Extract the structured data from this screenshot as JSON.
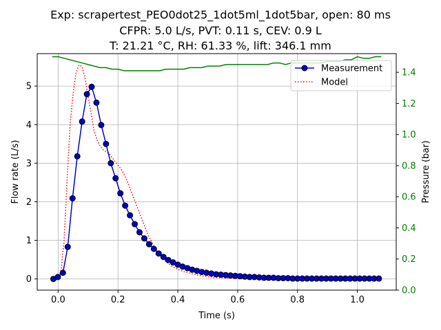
{
  "title": {
    "line1": "Exp: scrapertest_PEO0dot25_1dot5ml_1dot5bar, open: 80 ms",
    "line2": "CFPR: 5.0 L/s, PVT: 0.11 s, CEV: 0.9 L",
    "line3": "T: 21.21 °C, RH: 61.33 %, lift: 346.1 mm"
  },
  "chart_data": {
    "type": "line",
    "xlabel": "Time (s)",
    "ylabel": "Flow rate (L/s)",
    "y2label": "Pressure (bar)",
    "xlim": [
      -0.07,
      1.13
    ],
    "ylim": [
      -0.29,
      5.84
    ],
    "y2lim": [
      0.0,
      1.52
    ],
    "xticks": [
      "0.0",
      "0.2",
      "0.4",
      "0.6",
      "0.8",
      "1.0"
    ],
    "yticks": [
      "0",
      "1",
      "2",
      "3",
      "4",
      "5"
    ],
    "y2ticks": [
      "0.0",
      "0.2",
      "0.4",
      "0.6",
      "0.8",
      "1.0",
      "1.2",
      "1.4"
    ],
    "grid": true,
    "legend_position": "top-right",
    "colors": {
      "measurement": "#0000cc",
      "marker_edge": "#000000",
      "model": "#ff0000",
      "pressure": "#008000",
      "right_axis": "#008000"
    },
    "series": [
      {
        "name": "Measurement",
        "x": [
          -0.016,
          -0.001,
          0.016,
          0.032,
          0.048,
          0.064,
          0.08,
          0.096,
          0.112,
          0.128,
          0.144,
          0.16,
          0.176,
          0.192,
          0.208,
          0.224,
          0.24,
          0.256,
          0.272,
          0.288,
          0.304,
          0.32,
          0.336,
          0.352,
          0.368,
          0.384,
          0.4,
          0.416,
          0.432,
          0.448,
          0.464,
          0.48,
          0.496,
          0.512,
          0.528,
          0.544,
          0.56,
          0.576,
          0.592,
          0.608,
          0.624,
          0.64,
          0.656,
          0.672,
          0.688,
          0.704,
          0.72,
          0.736,
          0.752,
          0.768,
          0.784,
          0.8,
          0.816,
          0.832,
          0.848,
          0.864,
          0.88,
          0.896,
          0.912,
          0.928,
          0.944,
          0.96,
          0.976,
          0.992,
          1.008,
          1.024,
          1.04,
          1.056,
          1.072
        ],
        "y": [
          0.0,
          0.05,
          0.16,
          0.83,
          2.09,
          3.18,
          4.08,
          4.79,
          4.98,
          4.57,
          3.99,
          3.5,
          3.0,
          2.61,
          2.22,
          1.9,
          1.65,
          1.42,
          1.21,
          1.05,
          0.9,
          0.78,
          0.66,
          0.57,
          0.49,
          0.43,
          0.37,
          0.32,
          0.28,
          0.24,
          0.21,
          0.18,
          0.16,
          0.14,
          0.12,
          0.11,
          0.1,
          0.09,
          0.08,
          0.07,
          0.06,
          0.05,
          0.05,
          0.04,
          0.03,
          0.03,
          0.03,
          0.02,
          0.02,
          0.02,
          0.01,
          0.01,
          0.01,
          0.01,
          0.01,
          0.01,
          0.01,
          0.01,
          0.01,
          0.01,
          0.01,
          0.01,
          0.01,
          0.01,
          0.01,
          0.01,
          0.01,
          0.01,
          0.01
        ]
      },
      {
        "name": "Model",
        "x": [
          0.0,
          0.01,
          0.02,
          0.03,
          0.04,
          0.05,
          0.06,
          0.07,
          0.08,
          0.09,
          0.1,
          0.11,
          0.12,
          0.13,
          0.14,
          0.15,
          0.16,
          0.17,
          0.18,
          0.19,
          0.2,
          0.21,
          0.22,
          0.23,
          0.24,
          0.25,
          0.26,
          0.27,
          0.28,
          0.29,
          0.3,
          0.32,
          0.34,
          0.36,
          0.38,
          0.4,
          0.42,
          0.44,
          0.46,
          0.48,
          0.5,
          0.52,
          0.55,
          0.58,
          0.62,
          0.66,
          0.7,
          0.75
        ],
        "y": [
          0.0,
          0.25,
          1.0,
          2.6,
          4.0,
          4.8,
          5.35,
          5.55,
          5.5,
          5.2,
          4.75,
          4.3,
          3.85,
          3.6,
          3.45,
          3.35,
          3.3,
          3.25,
          3.15,
          3.05,
          2.95,
          2.85,
          2.72,
          2.55,
          2.35,
          2.15,
          1.95,
          1.75,
          1.55,
          1.35,
          1.15,
          0.85,
          0.6,
          0.45,
          0.33,
          0.25,
          0.19,
          0.15,
          0.11,
          0.08,
          0.06,
          0.04,
          0.03,
          0.02,
          0.01,
          0.01,
          0.0,
          0.0
        ]
      },
      {
        "axis": "right",
        "x": [
          -0.02,
          0.0,
          0.02,
          0.04,
          0.06,
          0.08,
          0.1,
          0.12,
          0.14,
          0.16,
          0.18,
          0.2,
          0.22,
          0.24,
          0.26,
          0.28,
          0.3,
          0.32,
          0.34,
          0.36,
          0.38,
          0.4,
          0.42,
          0.44,
          0.46,
          0.48,
          0.5,
          0.52,
          0.54,
          0.56,
          0.58,
          0.6,
          0.62,
          0.64,
          0.66,
          0.68,
          0.7,
          0.72,
          0.74,
          0.76,
          0.78,
          0.8,
          0.82,
          0.84,
          0.86,
          0.88,
          0.9,
          0.92,
          0.94,
          0.96,
          0.98,
          1.0,
          1.02,
          1.04,
          1.06,
          1.08
        ],
        "y": [
          1.5,
          1.5,
          1.49,
          1.48,
          1.47,
          1.46,
          1.45,
          1.44,
          1.43,
          1.43,
          1.42,
          1.42,
          1.41,
          1.41,
          1.41,
          1.41,
          1.41,
          1.41,
          1.41,
          1.42,
          1.42,
          1.42,
          1.42,
          1.43,
          1.43,
          1.43,
          1.44,
          1.44,
          1.44,
          1.45,
          1.45,
          1.45,
          1.45,
          1.45,
          1.45,
          1.45,
          1.45,
          1.46,
          1.46,
          1.45,
          1.46,
          1.46,
          1.46,
          1.46,
          1.46,
          1.46,
          1.47,
          1.47,
          1.47,
          1.48,
          1.48,
          1.5,
          1.49,
          1.49,
          1.5,
          1.5
        ]
      }
    ]
  }
}
